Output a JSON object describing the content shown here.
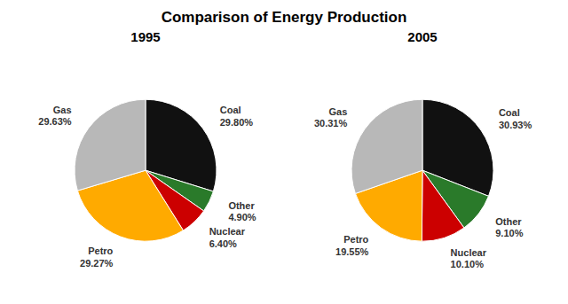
{
  "title": "Comparison of Energy Production",
  "chart_data": [
    {
      "type": "pie",
      "title": "1995",
      "categories": [
        "Coal",
        "Other",
        "Nuclear",
        "Petro",
        "Gas"
      ],
      "values": [
        29.8,
        4.9,
        6.4,
        29.27,
        29.63
      ],
      "value_labels": [
        "29.80%",
        "4.90%",
        "6.40%",
        "29.27%",
        "29.63%"
      ],
      "colors": [
        "#111111",
        "#2a7a2a",
        "#cc0000",
        "#ffaa00",
        "#b8b8b8"
      ],
      "data_labels": true
    },
    {
      "type": "pie",
      "title": "2005",
      "categories": [
        "Coal",
        "Other",
        "Nuclear",
        "Petro",
        "Gas"
      ],
      "values": [
        30.93,
        9.1,
        10.1,
        19.55,
        30.31
      ],
      "value_labels": [
        "30.93%",
        "9.10%",
        "10.10%",
        "19.55%",
        "30.31%"
      ],
      "colors": [
        "#111111",
        "#2a7a2a",
        "#cc0000",
        "#ffaa00",
        "#b8b8b8"
      ],
      "data_labels": true
    }
  ]
}
